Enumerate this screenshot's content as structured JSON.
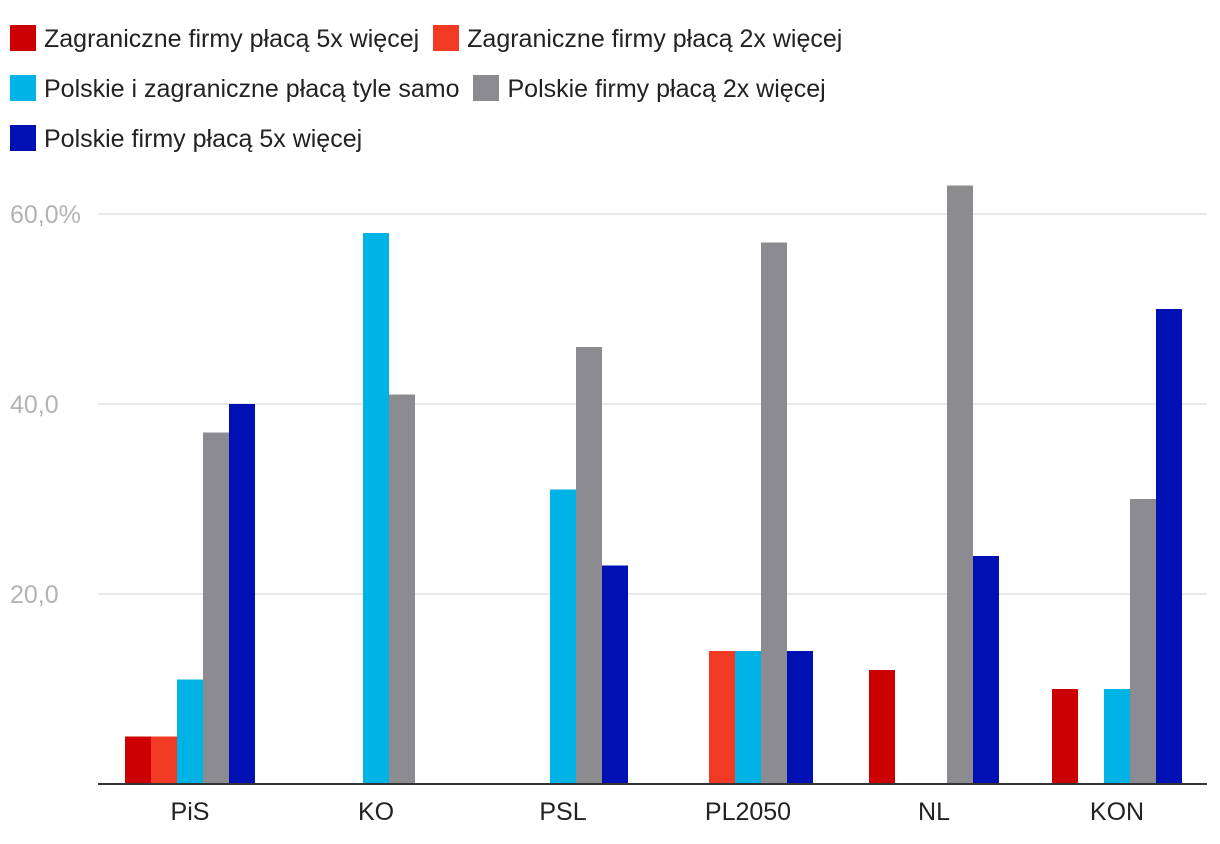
{
  "chart_data": {
    "type": "bar",
    "categories": [
      "PiS",
      "KO",
      "PSL",
      "PL2050",
      "NL",
      "KON"
    ],
    "series": [
      {
        "name": "Zagraniczne firmy płacą 5x więcej",
        "color": "#cc0000",
        "values": [
          5,
          0,
          0,
          0,
          12,
          10
        ]
      },
      {
        "name": "Zagraniczne firmy płacą 2x więcej",
        "color": "#f03a24",
        "values": [
          5,
          0,
          0,
          14,
          0,
          0
        ]
      },
      {
        "name": "Polskie i zagraniczne płacą tyle samo",
        "color": "#00b3e6",
        "values": [
          11,
          58,
          31,
          14,
          0,
          10
        ]
      },
      {
        "name": "Polskie firmy płacą 2x więcej",
        "color": "#8c8b8f",
        "values": [
          37,
          41,
          46,
          57,
          63,
          30
        ]
      },
      {
        "name": "Polskie firmy płacą 5x więcej",
        "color": "#0010b3",
        "values": [
          40,
          0,
          23,
          14,
          24,
          50
        ]
      }
    ],
    "yticks": [
      {
        "value": 20,
        "label": "20,0"
      },
      {
        "value": 40,
        "label": "40,0"
      },
      {
        "value": 60,
        "label": "60,0%"
      }
    ],
    "ylim": [
      0,
      66
    ],
    "title": "",
    "xlabel": "",
    "ylabel": "",
    "grid": true,
    "legend": "top"
  }
}
